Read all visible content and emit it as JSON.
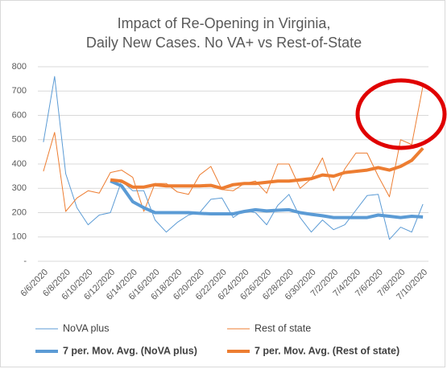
{
  "chart_data": {
    "type": "line",
    "title": [
      "Impact of Re-Opening in Virginia,",
      "Daily New Cases. No VA+ vs Rest-of-State"
    ],
    "categories": [
      "6/6/2020",
      null,
      "6/8/2020",
      null,
      "6/10/2020",
      null,
      "6/12/2020",
      null,
      "6/14/2020",
      null,
      "6/16/2020",
      null,
      "6/18/2020",
      null,
      "6/20/2020",
      null,
      "6/22/2020",
      null,
      "6/24/2020",
      null,
      "6/26/2020",
      null,
      "6/28/2020",
      null,
      "6/30/2020",
      null,
      "7/2/2020",
      null,
      "7/4/2020",
      null,
      "7/6/2020",
      null,
      "7/8/2020",
      null,
      "7/10/2020"
    ],
    "series": [
      {
        "name": "NoVA plus",
        "color": "#5b9bd5",
        "line_width": 1,
        "values": [
          490,
          760,
          360,
          220,
          150,
          190,
          200,
          330,
          290,
          290,
          170,
          120,
          160,
          190,
          200,
          255,
          260,
          180,
          210,
          200,
          150,
          230,
          275,
          180,
          120,
          170,
          130,
          150,
          210,
          270,
          275,
          90,
          140,
          120,
          235
        ]
      },
      {
        "name": "Rest of state",
        "color": "#ed7d31",
        "line_width": 1,
        "values": [
          370,
          530,
          205,
          260,
          290,
          280,
          365,
          375,
          345,
          205,
          320,
          320,
          285,
          275,
          355,
          390,
          295,
          290,
          320,
          330,
          280,
          400,
          400,
          300,
          340,
          425,
          290,
          380,
          445,
          445,
          350,
          265,
          500,
          480,
          720
        ]
      },
      {
        "name": "7 per. Mov. Avg. (NoVA plus)",
        "color": "#5b9bd5",
        "line_width": 4,
        "values": [
          null,
          null,
          null,
          null,
          null,
          null,
          330,
          310,
          245,
          220,
          200,
          200,
          200,
          200,
          197,
          195,
          195,
          195,
          205,
          212,
          207,
          210,
          212,
          200,
          193,
          187,
          180,
          180,
          180,
          180,
          190,
          185,
          180,
          185,
          182
        ]
      },
      {
        "name": "7 per. Mov. Avg. (Rest of state)",
        "color": "#ed7d31",
        "line_width": 4,
        "values": [
          null,
          null,
          null,
          null,
          null,
          null,
          335,
          330,
          305,
          305,
          315,
          310,
          310,
          310,
          310,
          312,
          300,
          315,
          320,
          320,
          325,
          330,
          330,
          335,
          340,
          355,
          350,
          365,
          370,
          375,
          385,
          375,
          390,
          415,
          465
        ]
      }
    ],
    "ylim": [
      0,
      800
    ],
    "yticks": [
      {
        "value": 0,
        "label": "-"
      },
      100,
      200,
      300,
      400,
      500,
      600,
      700,
      800
    ],
    "grid": true,
    "legend": "bottom"
  }
}
